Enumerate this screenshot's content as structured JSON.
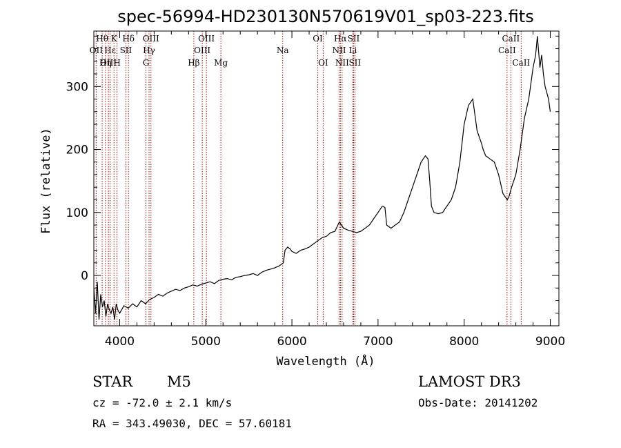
{
  "chart_data": {
    "type": "line",
    "title": "spec-56994-HD230130N570619V01_sp03-223.fits",
    "xlabel": "Wavelength (Å)",
    "ylabel": "Flux (relative)",
    "xlim": [
      3700,
      9100
    ],
    "ylim": [
      -80,
      388
    ],
    "xticks": [
      4000,
      5000,
      6000,
      7000,
      8000,
      9000
    ],
    "yticks": [
      0,
      100,
      200,
      300
    ],
    "series": [
      {
        "name": "spectrum",
        "x": [
          3700,
          3720,
          3740,
          3760,
          3780,
          3800,
          3820,
          3840,
          3860,
          3880,
          3900,
          3920,
          3940,
          3960,
          3980,
          4000,
          4050,
          4100,
          4150,
          4200,
          4250,
          4300,
          4350,
          4400,
          4450,
          4500,
          4550,
          4600,
          4650,
          4700,
          4750,
          4800,
          4850,
          4900,
          4950,
          5000,
          5050,
          5100,
          5150,
          5200,
          5250,
          5300,
          5350,
          5400,
          5450,
          5500,
          5550,
          5600,
          5650,
          5700,
          5750,
          5800,
          5850,
          5880,
          5900,
          5920,
          5950,
          5980,
          6000,
          6050,
          6100,
          6150,
          6200,
          6250,
          6300,
          6350,
          6400,
          6450,
          6500,
          6550,
          6600,
          6650,
          6700,
          6750,
          6800,
          6850,
          6900,
          6950,
          7000,
          7050,
          7080,
          7100,
          7150,
          7200,
          7250,
          7300,
          7350,
          7400,
          7450,
          7500,
          7550,
          7580,
          7600,
          7620,
          7650,
          7700,
          7750,
          7800,
          7850,
          7900,
          7950,
          8000,
          8050,
          8100,
          8150,
          8200,
          8220,
          8250,
          8300,
          8350,
          8400,
          8450,
          8500,
          8520,
          8550,
          8600,
          8650,
          8700,
          8750,
          8800,
          8830,
          8850,
          8880,
          8900,
          8920,
          8940,
          8960,
          8980,
          9000
        ],
        "y": [
          -20,
          -60,
          -10,
          -70,
          -30,
          -50,
          -40,
          -65,
          -45,
          -55,
          -60,
          -50,
          -70,
          -45,
          -55,
          -60,
          -48,
          -52,
          -45,
          -50,
          -40,
          -45,
          -38,
          -35,
          -30,
          -33,
          -28,
          -25,
          -22,
          -24,
          -20,
          -18,
          -15,
          -17,
          -14,
          -12,
          -10,
          -13,
          -8,
          -6,
          -5,
          -7,
          -3,
          -2,
          0,
          1,
          3,
          0,
          5,
          8,
          10,
          12,
          15,
          18,
          20,
          40,
          45,
          42,
          38,
          35,
          40,
          42,
          45,
          50,
          55,
          60,
          62,
          68,
          70,
          85,
          75,
          72,
          70,
          68,
          70,
          75,
          80,
          90,
          100,
          110,
          108,
          80,
          75,
          80,
          85,
          100,
          120,
          140,
          160,
          180,
          190,
          185,
          150,
          110,
          100,
          98,
          100,
          110,
          120,
          140,
          180,
          240,
          270,
          280,
          230,
          210,
          200,
          190,
          185,
          180,
          160,
          130,
          120,
          125,
          140,
          160,
          200,
          250,
          280,
          330,
          350,
          380,
          330,
          350,
          320,
          300,
          290,
          280,
          260
        ]
      }
    ],
    "line_markers": [
      {
        "label": "Hθ",
        "x": 3797,
        "row": 0
      },
      {
        "label": "OII",
        "x": 3727,
        "row": 1
      },
      {
        "label": "OIII",
        "x": 3869,
        "row": 2
      },
      {
        "label": "Hε",
        "x": 3889,
        "row": 1
      },
      {
        "label": "Hη",
        "x": 3835,
        "row": 2
      },
      {
        "label": "K",
        "x": 3934,
        "row": 0
      },
      {
        "label": "H",
        "x": 3969,
        "row": 2
      },
      {
        "label": "SII",
        "x": 4072,
        "row": 1
      },
      {
        "label": "Hδ",
        "x": 4102,
        "row": 0
      },
      {
        "label": "OIII",
        "x": 4363,
        "row": 0
      },
      {
        "label": "Hγ",
        "x": 4341,
        "row": 1
      },
      {
        "label": "G",
        "x": 4305,
        "row": 2
      },
      {
        "label": "Hβ",
        "x": 4861,
        "row": 2
      },
      {
        "label": "OIII",
        "x": 5007,
        "row": 0
      },
      {
        "label": "OIII",
        "x": 4959,
        "row": 1
      },
      {
        "label": "Mg",
        "x": 5175,
        "row": 2
      },
      {
        "label": "Na",
        "x": 5893,
        "row": 1
      },
      {
        "label": "OI",
        "x": 6300,
        "row": 0
      },
      {
        "label": "OI",
        "x": 6363,
        "row": 2
      },
      {
        "label": "Hα",
        "x": 6563,
        "row": 0
      },
      {
        "label": "NII",
        "x": 6548,
        "row": 1
      },
      {
        "label": "NII",
        "x": 6583,
        "row": 2
      },
      {
        "label": "SII",
        "x": 6716,
        "row": 0
      },
      {
        "label": "Li",
        "x": 6708,
        "row": 1
      },
      {
        "label": "SII",
        "x": 6731,
        "row": 2
      },
      {
        "label": "CaII",
        "x": 8542,
        "row": 0
      },
      {
        "label": "CaII",
        "x": 8498,
        "row": 1
      },
      {
        "label": "CaII",
        "x": 8662,
        "row": 2
      }
    ]
  },
  "info": {
    "object_class": "STAR",
    "subclass": "M5",
    "cz": "cz = -72.0 ± 2.1 km/s",
    "coords": "RA = 343.49030, DEC =  57.60181",
    "survey": "LAMOST DR3",
    "obs_date": "Obs-Date: 20141202"
  },
  "colors": {
    "line": "#000000",
    "marker": "#c00000",
    "background": "#ffffff"
  }
}
